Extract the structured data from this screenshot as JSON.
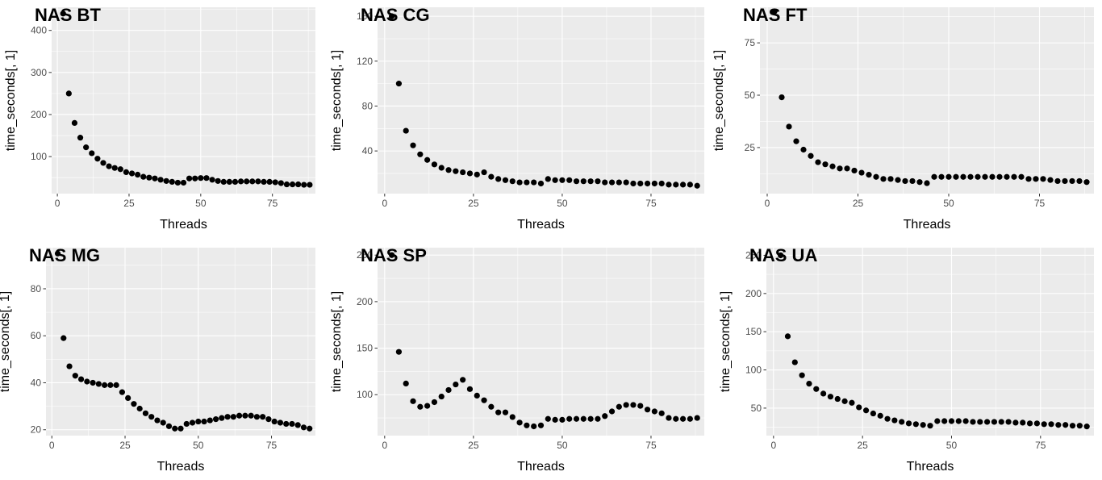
{
  "chart_data": [
    {
      "type": "scatter",
      "title": "NAS BT",
      "xlabel": "Threads",
      "ylabel": "time_seconds[, 1]",
      "xlim": [
        -2,
        90
      ],
      "ylim": [
        12,
        455
      ],
      "xticks": [
        0,
        25,
        50,
        75
      ],
      "yticks": [
        100,
        200,
        300,
        400
      ],
      "grid": true,
      "color": "#000000",
      "x": [
        2,
        4,
        6,
        8,
        10,
        12,
        14,
        16,
        18,
        20,
        22,
        24,
        26,
        28,
        30,
        32,
        34,
        36,
        38,
        40,
        42,
        44,
        46,
        48,
        50,
        52,
        54,
        56,
        58,
        60,
        62,
        64,
        66,
        68,
        70,
        72,
        74,
        76,
        78,
        80,
        82,
        84,
        86,
        88
      ],
      "y": [
        440,
        250,
        180,
        145,
        122,
        108,
        95,
        85,
        77,
        73,
        70,
        63,
        60,
        57,
        52,
        50,
        48,
        45,
        42,
        40,
        38,
        38,
        48,
        48,
        49,
        49,
        45,
        42,
        40,
        40,
        40,
        41,
        41,
        41,
        41,
        40,
        40,
        39,
        37,
        34,
        34,
        34,
        33,
        33
      ]
    },
    {
      "type": "scatter",
      "title": "NAS CG",
      "xlabel": "Threads",
      "ylabel": "time_seconds[, 1]",
      "xlim": [
        -2,
        90
      ],
      "ylim": [
        2,
        168
      ],
      "xticks": [
        0,
        25,
        50,
        75
      ],
      "yticks": [
        40,
        80,
        120,
        160
      ],
      "grid": true,
      "color": "#000000",
      "x": [
        2,
        4,
        6,
        8,
        10,
        12,
        14,
        16,
        18,
        20,
        22,
        24,
        26,
        28,
        30,
        32,
        34,
        36,
        38,
        40,
        42,
        44,
        46,
        48,
        50,
        52,
        54,
        56,
        58,
        60,
        62,
        64,
        66,
        68,
        70,
        72,
        74,
        76,
        78,
        80,
        82,
        84,
        86,
        88
      ],
      "y": [
        160,
        100,
        58,
        45,
        37,
        32,
        28,
        25,
        23,
        22,
        21,
        20,
        19,
        21,
        17,
        15,
        14,
        13,
        12,
        12,
        12,
        11,
        15,
        14,
        14,
        14,
        13,
        13,
        13,
        13,
        12,
        12,
        12,
        12,
        11,
        11,
        11,
        11,
        11,
        10,
        10,
        10,
        10,
        9
      ]
    },
    {
      "type": "scatter",
      "title": "NAS FT",
      "xlabel": "Threads",
      "ylabel": "time_seconds[, 1]",
      "xlim": [
        -2,
        90
      ],
      "ylim": [
        3,
        92
      ],
      "xticks": [
        0,
        25,
        50,
        75
      ],
      "yticks": [
        25,
        50,
        75
      ],
      "grid": true,
      "color": "#000000",
      "x": [
        2,
        4,
        6,
        8,
        10,
        12,
        14,
        16,
        18,
        20,
        22,
        24,
        26,
        28,
        30,
        32,
        34,
        36,
        38,
        40,
        42,
        44,
        46,
        48,
        50,
        52,
        54,
        56,
        58,
        60,
        62,
        64,
        66,
        68,
        70,
        72,
        74,
        76,
        78,
        80,
        82,
        84,
        86,
        88
      ],
      "y": [
        90,
        49,
        35,
        28,
        24,
        21,
        18,
        17,
        16,
        15,
        15,
        14,
        13,
        12,
        11,
        10,
        10,
        9.5,
        9,
        9,
        8.5,
        8,
        11,
        11,
        11,
        11,
        11,
        11,
        11,
        11,
        11,
        11,
        11,
        11,
        11,
        10,
        10,
        10,
        9.5,
        9,
        9,
        9,
        9,
        8.5
      ]
    },
    {
      "type": "scatter",
      "title": "NAS MG",
      "xlabel": "Threads",
      "ylabel": "time_seconds[, 1]",
      "xlim": [
        -2,
        90
      ],
      "ylim": [
        17.5,
        97.5
      ],
      "xticks": [
        0,
        25,
        50,
        75
      ],
      "yticks": [
        20,
        40,
        60,
        80
      ],
      "grid": true,
      "color": "#000000",
      "x": [
        2,
        4,
        6,
        8,
        10,
        12,
        14,
        16,
        18,
        20,
        22,
        24,
        26,
        28,
        30,
        32,
        34,
        36,
        38,
        40,
        42,
        44,
        46,
        48,
        50,
        52,
        54,
        56,
        58,
        60,
        62,
        64,
        66,
        68,
        70,
        72,
        74,
        76,
        78,
        80,
        82,
        84,
        86,
        88
      ],
      "y": [
        95,
        59,
        47,
        43,
        41.5,
        40.5,
        40,
        39.5,
        39,
        39,
        39,
        36,
        33.5,
        31,
        29,
        27,
        25.5,
        24,
        23,
        21.5,
        20.5,
        20.5,
        22.5,
        23,
        23.5,
        23.5,
        24,
        24.5,
        25,
        25.5,
        25.5,
        26,
        26,
        26,
        25.5,
        25.5,
        24.5,
        23.5,
        23,
        22.5,
        22.5,
        22,
        21,
        20.5
      ]
    },
    {
      "type": "scatter",
      "title": "NAS SP",
      "xlabel": "Threads",
      "ylabel": "time_seconds[, 1]",
      "xlim": [
        -2,
        90
      ],
      "ylim": [
        56,
        258
      ],
      "xticks": [
        0,
        25,
        50,
        75
      ],
      "yticks": [
        100,
        150,
        200,
        250
      ],
      "grid": true,
      "color": "#000000",
      "x": [
        2,
        4,
        6,
        8,
        10,
        12,
        14,
        16,
        18,
        20,
        22,
        24,
        26,
        28,
        30,
        32,
        34,
        36,
        38,
        40,
        42,
        44,
        46,
        48,
        50,
        52,
        54,
        56,
        58,
        60,
        62,
        64,
        66,
        68,
        70,
        72,
        74,
        76,
        78,
        80,
        82,
        84,
        86,
        88
      ],
      "y": [
        250,
        146,
        112,
        93,
        87,
        88,
        92,
        98,
        105,
        111,
        116,
        106,
        99,
        94,
        87,
        81,
        81,
        76,
        70,
        67,
        66,
        67,
        74,
        73,
        73,
        74,
        74,
        74,
        74,
        74,
        77,
        82,
        87,
        89,
        89,
        88,
        84,
        82,
        80,
        75,
        74,
        74,
        74,
        75
      ]
    },
    {
      "type": "scatter",
      "title": "NAS UA",
      "xlabel": "Threads",
      "ylabel": "time_seconds[, 1]",
      "xlim": [
        -2,
        90
      ],
      "ylim": [
        14,
        260
      ],
      "xticks": [
        0,
        25,
        50,
        75
      ],
      "yticks": [
        50,
        100,
        150,
        200,
        250
      ],
      "grid": true,
      "color": "#000000",
      "x": [
        2,
        4,
        6,
        8,
        10,
        12,
        14,
        16,
        18,
        20,
        22,
        24,
        26,
        28,
        30,
        32,
        34,
        36,
        38,
        40,
        42,
        44,
        46,
        48,
        50,
        52,
        54,
        56,
        58,
        60,
        62,
        64,
        66,
        68,
        70,
        72,
        74,
        76,
        78,
        80,
        82,
        84,
        86,
        88
      ],
      "y": [
        250,
        144,
        110,
        93,
        82,
        75,
        69,
        65,
        62,
        59,
        57,
        51,
        47,
        43,
        40,
        36,
        34,
        32,
        30,
        29,
        28,
        27,
        33,
        33,
        33,
        33,
        33,
        32,
        32,
        32,
        32,
        32,
        32,
        31,
        31,
        30,
        30,
        29,
        29,
        28,
        28,
        27,
        27,
        26
      ]
    }
  ]
}
